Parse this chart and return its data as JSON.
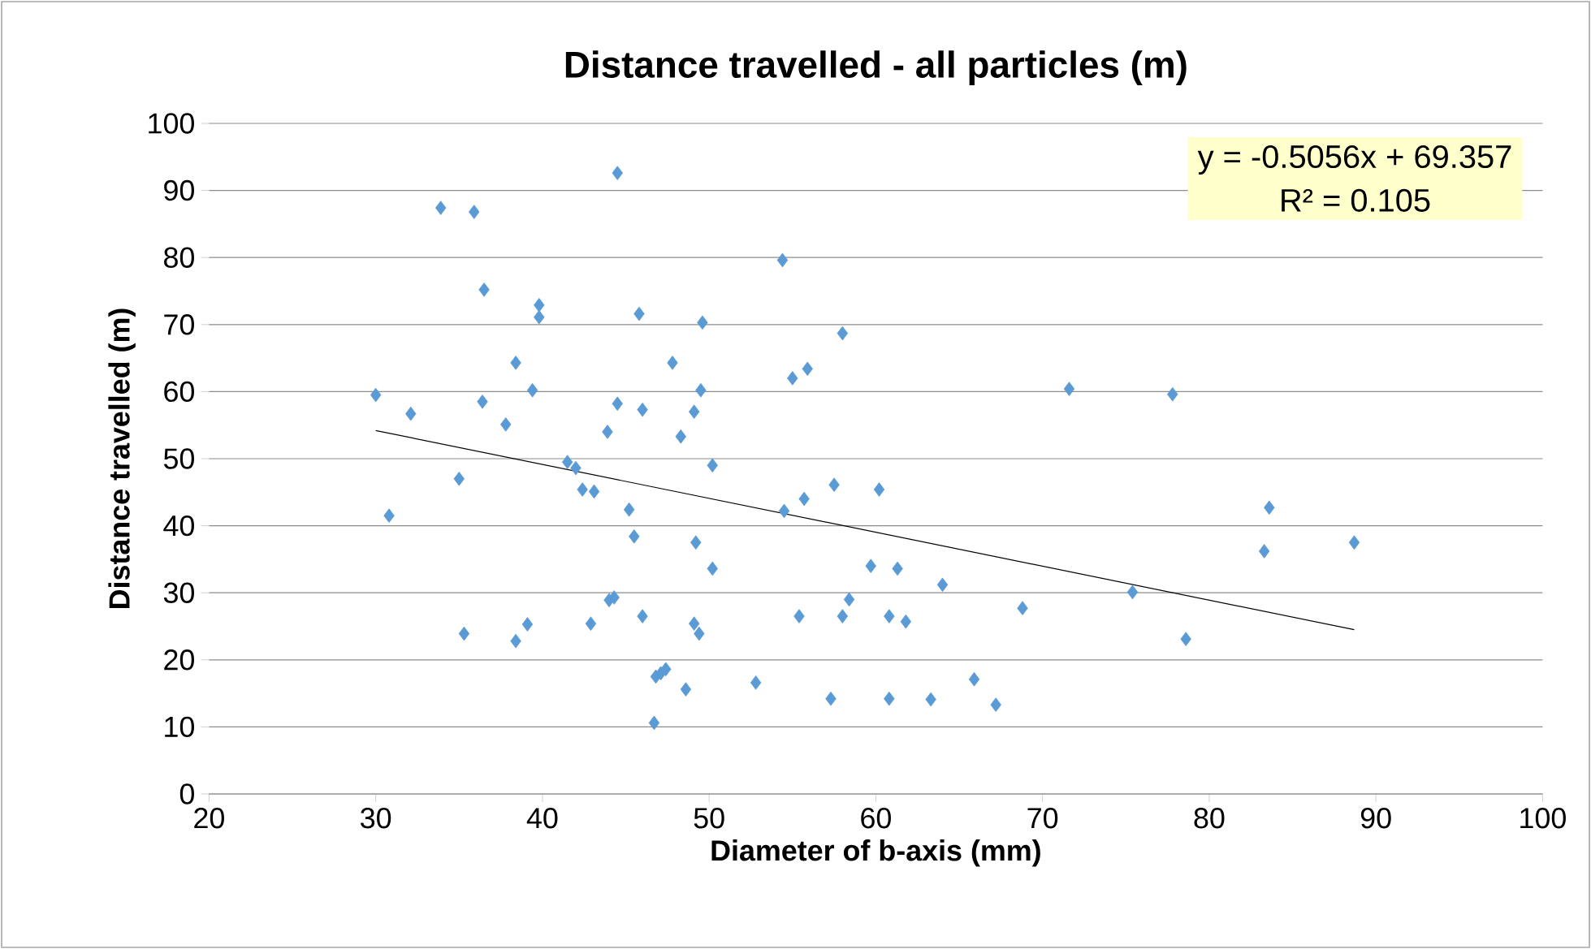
{
  "chart_data": {
    "type": "scatter",
    "title": "Distance travelled - all particles (m)",
    "xlabel": "Diameter of b-axis (mm)",
    "ylabel": "Distance travelled (m)",
    "xlim": [
      20,
      100
    ],
    "xticks": [
      20,
      30,
      40,
      50,
      60,
      70,
      80,
      90,
      100
    ],
    "ylim": [
      0,
      100
    ],
    "yticks": [
      0,
      10,
      20,
      30,
      40,
      50,
      60,
      70,
      80,
      90,
      100
    ],
    "grid": "y",
    "annotations": [
      "y = -0.5056x + 69.357",
      "R² = 0.105"
    ],
    "series": [
      {
        "color": "#5b9bd5",
        "marker": "diamond",
        "x": [
          30.0,
          30.8,
          32.1,
          33.9,
          35.0,
          35.3,
          35.9,
          36.5,
          36.4,
          37.8,
          38.4,
          38.4,
          39.1,
          39.4,
          39.8,
          39.8,
          41.5,
          42.0,
          42.4,
          43.1,
          42.9,
          43.9,
          44.0,
          44.3,
          44.5,
          44.5,
          45.2,
          45.5,
          45.8,
          46.0,
          46.0,
          46.7,
          46.8,
          47.1,
          47.4,
          47.8,
          48.3,
          48.6,
          49.1,
          49.1,
          49.2,
          49.4,
          49.5,
          49.6,
          50.2,
          50.2,
          52.8,
          54.4,
          54.5,
          55.0,
          55.4,
          55.9,
          55.7,
          57.3,
          57.5,
          58.0,
          58.0,
          58.4,
          59.7,
          60.2,
          60.8,
          60.8,
          61.3,
          61.8,
          63.3,
          64.0,
          65.9,
          67.2,
          68.8,
          71.6,
          75.4,
          77.8,
          78.6,
          83.3,
          83.6,
          88.7
        ],
        "values": [
          59.5,
          41.5,
          56.7,
          87.4,
          47.0,
          23.9,
          86.8,
          75.2,
          58.5,
          55.1,
          22.8,
          64.3,
          25.3,
          60.2,
          72.9,
          71.1,
          49.5,
          48.6,
          45.4,
          45.1,
          25.4,
          54.0,
          28.9,
          29.3,
          92.6,
          58.2,
          42.4,
          38.4,
          71.6,
          57.3,
          26.5,
          10.6,
          17.5,
          18.0,
          18.6,
          64.3,
          53.3,
          15.6,
          57.0,
          25.4,
          37.5,
          23.9,
          60.2,
          70.3,
          49.0,
          33.6,
          16.6,
          79.6,
          42.2,
          62.0,
          26.5,
          63.4,
          44.0,
          14.2,
          46.1,
          68.7,
          26.5,
          29.0,
          34.0,
          45.4,
          26.5,
          14.2,
          33.6,
          25.7,
          14.1,
          31.2,
          17.1,
          13.3,
          27.7,
          60.4,
          30.1,
          59.6,
          23.1,
          36.2,
          42.7,
          37.5
        ]
      },
      {
        "type": "line",
        "color": "#000000",
        "marker": "none",
        "x": [
          30.0,
          88.7
        ],
        "values": [
          54.2,
          24.5
        ]
      }
    ]
  }
}
